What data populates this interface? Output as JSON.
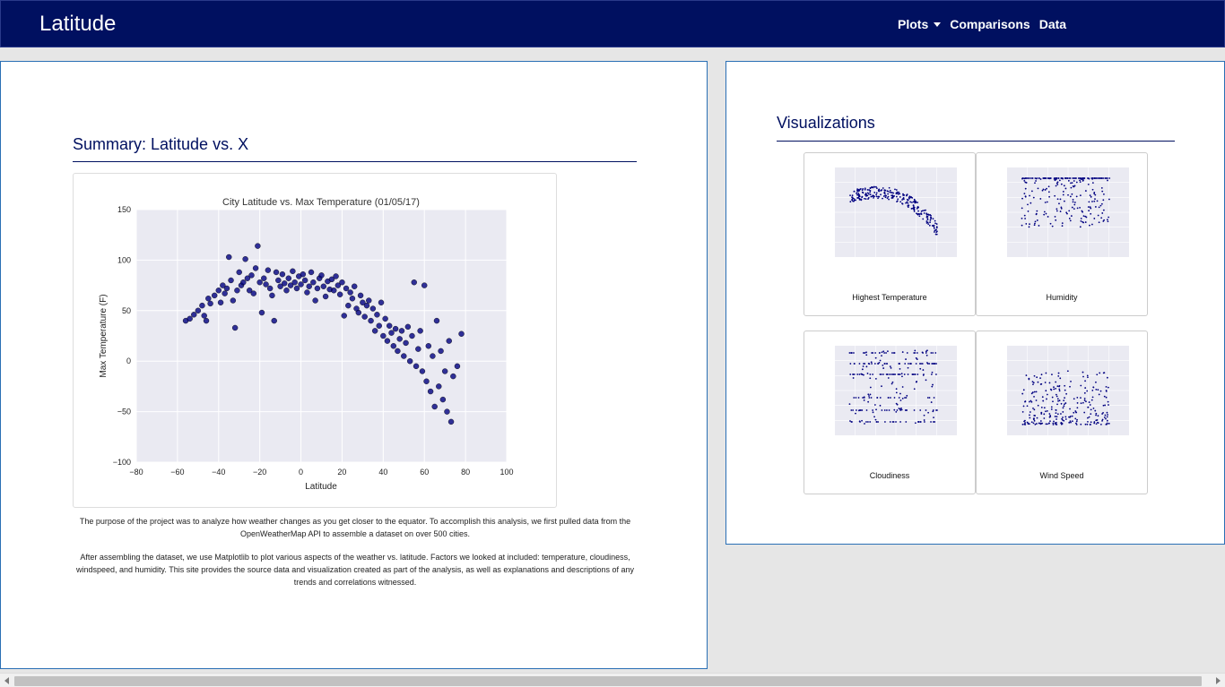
{
  "navbar": {
    "brand": "Latitude",
    "items": [
      {
        "label": "Plots"
      },
      {
        "label": "Comparisons"
      },
      {
        "label": "Data"
      }
    ]
  },
  "summary": {
    "title": "Summary: Latitude vs. X",
    "paragraph1": "The purpose of the project was to analyze how weather changes as you get closer to the equator. To accomplish this analysis, we first pulled data from the OpenWeatherMap API to assemble a dataset on over 500 cities.",
    "paragraph2": "After assembling the dataset, we use Matplotlib to plot various aspects of the weather vs. latitude. Factors we looked at included: temperature, cloudiness, windspeed, and humidity. This site provides the source data and visualization created as part of the analysis, as well as explanations and descriptions of any trends and correlations witnessed."
  },
  "visualizations": {
    "title": "Visualizations",
    "thumbnails": [
      {
        "caption": "Highest Temperature"
      },
      {
        "caption": "Humidity"
      },
      {
        "caption": "Cloudiness"
      },
      {
        "caption": "Wind Speed"
      }
    ]
  },
  "colors": {
    "nav_bg": "#001060",
    "point": "#000080",
    "plot_bg": "#eaeaf2"
  },
  "chart_data": {
    "type": "scatter",
    "title": "City Latitude vs. Max Temperature (01/05/17)",
    "xlabel": "Latitude",
    "ylabel": "Max Temperature (F)",
    "xlim": [
      -80,
      100
    ],
    "ylim": [
      -100,
      150
    ],
    "xticks": [
      "−80",
      "−60",
      "−40",
      "−20",
      "0",
      "20",
      "40",
      "60",
      "80",
      "100"
    ],
    "yticks": [
      "150",
      "100",
      "50",
      "0",
      "−50",
      "−100"
    ],
    "grid": true,
    "points": [
      [
        -56,
        40
      ],
      [
        -54,
        42
      ],
      [
        -52,
        46
      ],
      [
        -50,
        50
      ],
      [
        -48,
        55
      ],
      [
        -47,
        45
      ],
      [
        -46,
        40
      ],
      [
        -45,
        62
      ],
      [
        -44,
        57
      ],
      [
        -42,
        65
      ],
      [
        -40,
        70
      ],
      [
        -39,
        58
      ],
      [
        -38,
        75
      ],
      [
        -37,
        67
      ],
      [
        -36,
        72
      ],
      [
        -35,
        103
      ],
      [
        -34,
        80
      ],
      [
        -33,
        60
      ],
      [
        -32,
        33
      ],
      [
        -31,
        70
      ],
      [
        -30,
        88
      ],
      [
        -29,
        75
      ],
      [
        -28,
        78
      ],
      [
        -27,
        101
      ],
      [
        -26,
        82
      ],
      [
        -25,
        70
      ],
      [
        -24,
        85
      ],
      [
        -23,
        67
      ],
      [
        -22,
        92
      ],
      [
        -21,
        114
      ],
      [
        -20,
        78
      ],
      [
        -19,
        48
      ],
      [
        -18,
        82
      ],
      [
        -17,
        76
      ],
      [
        -16,
        90
      ],
      [
        -15,
        72
      ],
      [
        -14,
        65
      ],
      [
        -13,
        40
      ],
      [
        -12,
        88
      ],
      [
        -11,
        80
      ],
      [
        -10,
        74
      ],
      [
        -9,
        86
      ],
      [
        -8,
        77
      ],
      [
        -7,
        70
      ],
      [
        -6,
        82
      ],
      [
        -5,
        75
      ],
      [
        -4,
        89
      ],
      [
        -3,
        78
      ],
      [
        -2,
        72
      ],
      [
        -1,
        84
      ],
      [
        0,
        76
      ],
      [
        1,
        86
      ],
      [
        2,
        80
      ],
      [
        3,
        68
      ],
      [
        4,
        74
      ],
      [
        5,
        88
      ],
      [
        6,
        78
      ],
      [
        7,
        60
      ],
      [
        8,
        72
      ],
      [
        9,
        82
      ],
      [
        10,
        85
      ],
      [
        11,
        74
      ],
      [
        12,
        64
      ],
      [
        13,
        79
      ],
      [
        14,
        71
      ],
      [
        15,
        81
      ],
      [
        16,
        70
      ],
      [
        17,
        84
      ],
      [
        18,
        75
      ],
      [
        19,
        66
      ],
      [
        20,
        78
      ],
      [
        21,
        45
      ],
      [
        22,
        72
      ],
      [
        23,
        55
      ],
      [
        24,
        68
      ],
      [
        25,
        62
      ],
      [
        26,
        74
      ],
      [
        27,
        52
      ],
      [
        28,
        48
      ],
      [
        29,
        65
      ],
      [
        30,
        58
      ],
      [
        31,
        44
      ],
      [
        32,
        55
      ],
      [
        33,
        60
      ],
      [
        34,
        40
      ],
      [
        35,
        52
      ],
      [
        36,
        30
      ],
      [
        37,
        46
      ],
      [
        38,
        35
      ],
      [
        39,
        58
      ],
      [
        40,
        25
      ],
      [
        41,
        42
      ],
      [
        42,
        20
      ],
      [
        43,
        35
      ],
      [
        44,
        28
      ],
      [
        45,
        15
      ],
      [
        46,
        32
      ],
      [
        47,
        10
      ],
      [
        48,
        22
      ],
      [
        49,
        30
      ],
      [
        50,
        5
      ],
      [
        51,
        18
      ],
      [
        52,
        34
      ],
      [
        53,
        0
      ],
      [
        54,
        25
      ],
      [
        55,
        78
      ],
      [
        56,
        -5
      ],
      [
        57,
        12
      ],
      [
        58,
        30
      ],
      [
        59,
        -10
      ],
      [
        60,
        75
      ],
      [
        61,
        -20
      ],
      [
        62,
        15
      ],
      [
        63,
        -30
      ],
      [
        64,
        5
      ],
      [
        65,
        -45
      ],
      [
        66,
        40
      ],
      [
        67,
        -25
      ],
      [
        68,
        10
      ],
      [
        69,
        -38
      ],
      [
        70,
        -10
      ],
      [
        71,
        -50
      ],
      [
        72,
        20
      ],
      [
        73,
        -60
      ],
      [
        74,
        -15
      ],
      [
        76,
        -5
      ],
      [
        78,
        27
      ]
    ]
  }
}
